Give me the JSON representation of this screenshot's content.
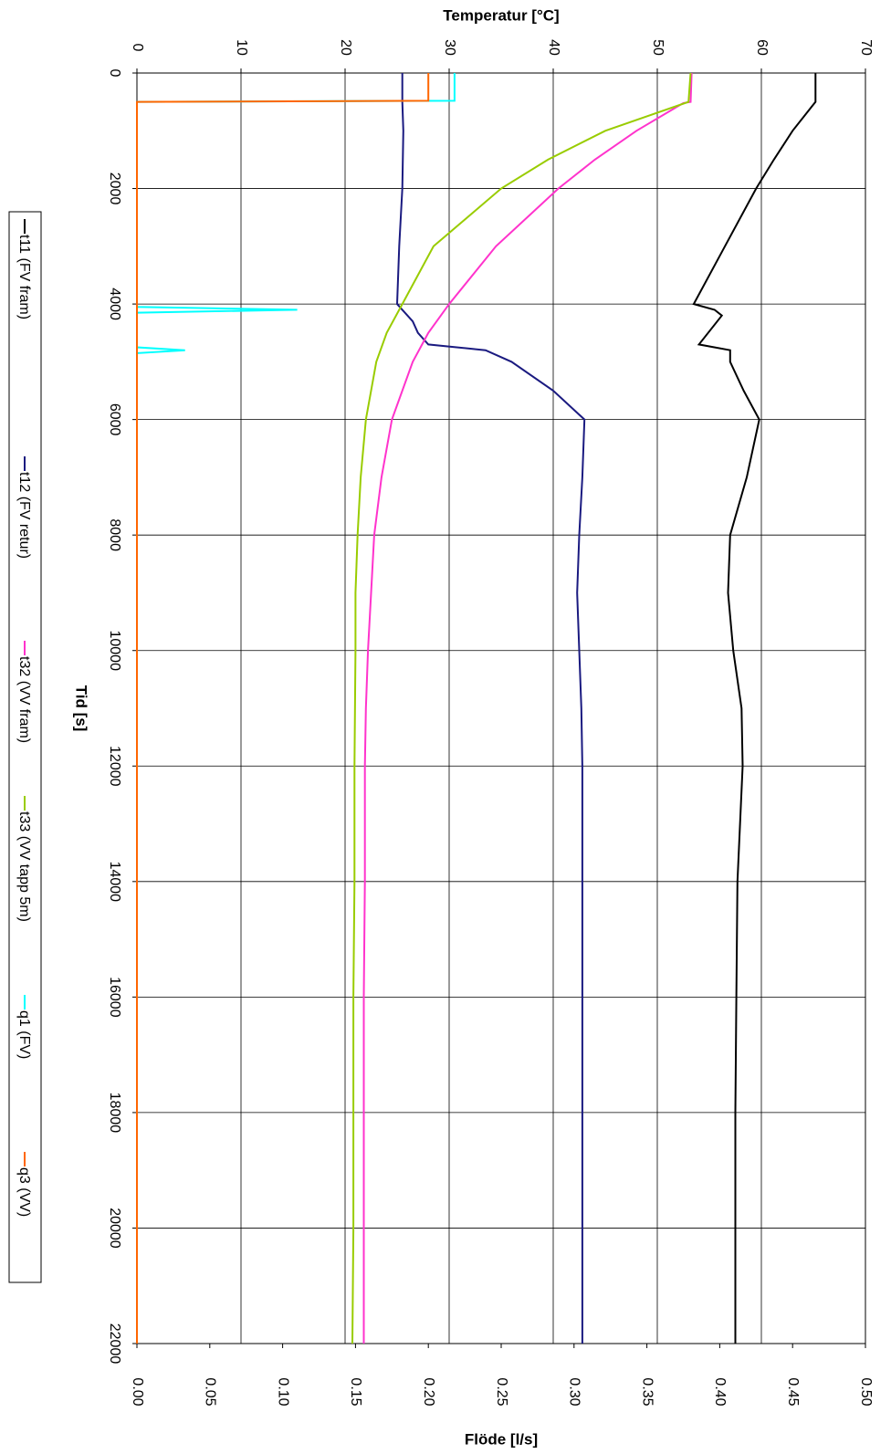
{
  "chart_data": {
    "type": "line",
    "x_label": "Tid [s]",
    "y_label": "Temperatur [°C]",
    "y2_label": "Flöde [l/s]",
    "xlim": [
      0,
      22000
    ],
    "xticks": [
      0,
      2000,
      4000,
      6000,
      8000,
      10000,
      12000,
      14000,
      16000,
      18000,
      20000,
      22000
    ],
    "ylim": [
      0,
      70
    ],
    "yticks": [
      0,
      10,
      20,
      30,
      40,
      50,
      60,
      70
    ],
    "y2lim": [
      0,
      0.5
    ],
    "y2ticks": [
      {
        "value": 0,
        "label": "0.00"
      },
      {
        "value": 0.05,
        "label": "0.05"
      },
      {
        "value": 0.1,
        "label": "0.10"
      },
      {
        "value": 0.15,
        "label": "0.15"
      },
      {
        "value": 0.2,
        "label": "0.20"
      },
      {
        "value": 0.25,
        "label": "0.25"
      },
      {
        "value": 0.3,
        "label": "0.30"
      },
      {
        "value": 0.35,
        "label": "0.35"
      },
      {
        "value": 0.4,
        "label": "0.40"
      },
      {
        "value": 0.45,
        "label": "0.45"
      },
      {
        "value": 0.5,
        "label": "0.50"
      }
    ],
    "grid": true,
    "legend": "left",
    "series": [
      {
        "name": "t11 (FV fram)",
        "color": "#000000",
        "x": [
          0,
          500,
          1000,
          1500,
          2000,
          3000,
          4000,
          4100,
          4200,
          4700,
          4800,
          5000,
          5500,
          6000,
          7000,
          8000,
          9000,
          10000,
          11000,
          12000,
          14000,
          16000,
          18000,
          20000,
          22000
        ],
        "values": [
          65.2,
          65.2,
          63,
          61.2,
          59.5,
          56.5,
          53.5,
          55.5,
          56.2,
          54,
          57,
          57,
          58.3,
          59.8,
          58.6,
          57,
          56.8,
          57.3,
          58.1,
          58.2,
          57.7,
          57.6,
          57.5,
          57.5,
          57.5
        ]
      },
      {
        "name": "t12 (FV retur)",
        "color": "#1a1a80",
        "x": [
          0,
          500,
          1000,
          2000,
          3000,
          4000,
          4100,
          4300,
          4500,
          4700,
          4800,
          5000,
          5500,
          6000,
          7000,
          8000,
          9000,
          10000,
          11000,
          12000,
          14000,
          16000,
          18000,
          20000,
          22000
        ],
        "values": [
          25.5,
          25.5,
          25.6,
          25.5,
          25.2,
          25,
          25.5,
          26.5,
          27,
          28,
          33.5,
          36,
          40,
          43,
          42.8,
          42.5,
          42.3,
          42.5,
          42.7,
          42.8,
          42.8,
          42.8,
          42.8,
          42.8,
          42.8
        ]
      },
      {
        "name": "t32 (VV fram)",
        "color": "#ff33cc",
        "x": [
          0,
          500,
          520,
          1000,
          1500,
          2000,
          3000,
          4000,
          4500,
          5000,
          6000,
          7000,
          8000,
          9000,
          10000,
          11000,
          12000,
          14000,
          16000,
          18000,
          20000,
          22000
        ],
        "values": [
          53.3,
          53.2,
          52.5,
          48,
          44,
          40.5,
          34.5,
          30,
          28,
          26.5,
          24.5,
          23.5,
          22.8,
          22.5,
          22.2,
          22,
          21.9,
          21.9,
          21.8,
          21.8,
          21.8,
          21.8
        ]
      },
      {
        "name": "t33 (VV tapp 5m)",
        "color": "#99cc00",
        "x": [
          0,
          500,
          1000,
          1500,
          2000,
          3000,
          4000,
          4500,
          5000,
          6000,
          7000,
          8000,
          9000,
          10000,
          12000,
          14000,
          16000,
          18000,
          20000,
          22000
        ],
        "values": [
          53.2,
          53,
          45,
          39.5,
          35,
          28.5,
          25.5,
          24,
          23,
          22,
          21.5,
          21.2,
          21,
          21,
          20.9,
          20.9,
          20.8,
          20.8,
          20.8,
          20.7
        ]
      },
      {
        "name": "q1 (FV)",
        "color": "#00ffff",
        "axis": "y2",
        "x": [
          0,
          480,
          500,
          4050,
          4100,
          4150,
          4750,
          4800,
          4850,
          22000
        ],
        "values": [
          0.218,
          0.218,
          0,
          0,
          0.11,
          0,
          0,
          0.033,
          0,
          0
        ]
      },
      {
        "name": "q3 (VV)",
        "color": "#ff6600",
        "axis": "y2",
        "x": [
          0,
          480,
          500,
          22000
        ],
        "values": [
          0.2,
          0.2,
          0,
          0
        ]
      }
    ]
  }
}
